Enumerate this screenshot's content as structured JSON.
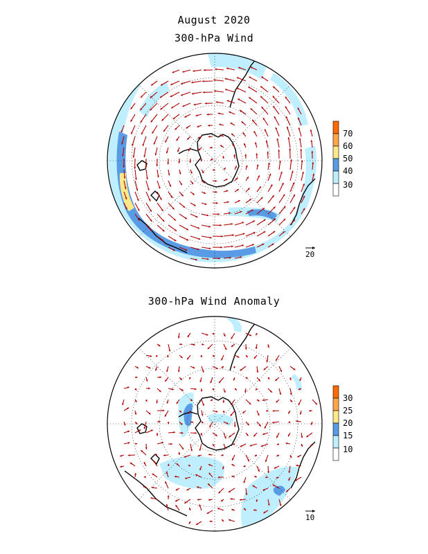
{
  "figure": {
    "title": "August 2020",
    "panel_top_title": "300-hPa Wind",
    "panel_bottom_title": "300-hPa Wind Anomaly"
  },
  "colors": {
    "vector": "#b00000",
    "coast": "#000000",
    "grid": "#000000",
    "levels_top": [
      "#ffffff",
      "#bfefff",
      "#5a9be6",
      "#ffe88a",
      "#ffa54a",
      "#ff6a00"
    ],
    "levels_bottom": [
      "#ffffff",
      "#bfefff",
      "#5a9be6",
      "#ffe88a",
      "#ffa54a",
      "#ff6a00"
    ]
  },
  "colorbar_top": {
    "labels": [
      "30",
      "40",
      "50",
      "60",
      "70"
    ]
  },
  "colorbar_bottom": {
    "labels": [
      "10",
      "15",
      "20",
      "25",
      "30"
    ]
  },
  "reference_vector_top": {
    "label": "20"
  },
  "reference_vector_bottom": {
    "label": "10"
  }
}
